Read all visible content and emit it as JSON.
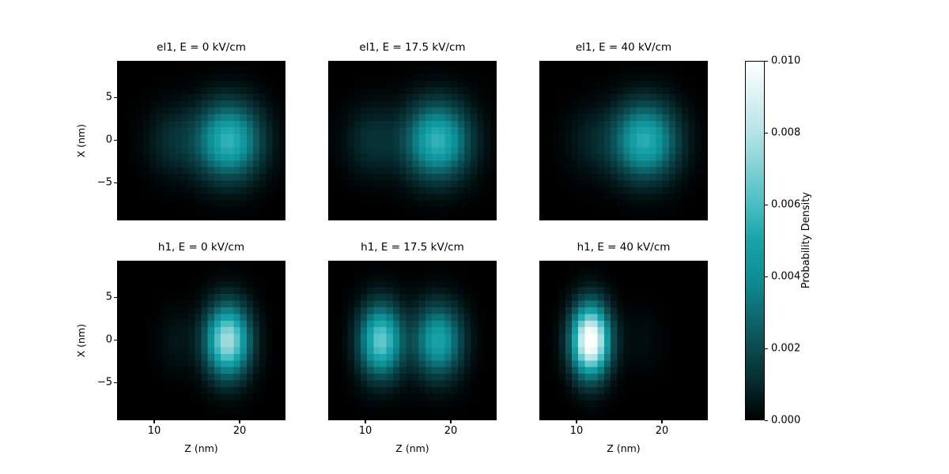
{
  "figure": {
    "background": "#ffffff",
    "text_color": "#000000",
    "colormap_stops": [
      [
        0.0,
        "#000000"
      ],
      [
        0.1,
        "#062a2e"
      ],
      [
        0.2,
        "#0b4a4f"
      ],
      [
        0.3,
        "#0e6d74"
      ],
      [
        0.4,
        "#0f8f96"
      ],
      [
        0.5,
        "#17a3aa"
      ],
      [
        0.6,
        "#49bec3"
      ],
      [
        0.8,
        "#b5e3e5"
      ],
      [
        1.0,
        "#ffffff"
      ]
    ]
  },
  "chart_data": {
    "type": "heatmap",
    "layout": "2x3 grid of probability-density maps with shared colorbar on right",
    "xlabel": "Z (nm)",
    "ylabel": "X (nm)",
    "x_range": [
      5.6,
      25.4
    ],
    "y_range": [
      -9.4,
      9.4
    ],
    "x_ticks": [
      10,
      20
    ],
    "x_tick_labels": [
      "10",
      "20"
    ],
    "y_ticks": [
      5,
      0,
      -5
    ],
    "y_tick_labels": [
      "5",
      "0",
      "−5"
    ],
    "vmin": 0.0,
    "vmax": 0.01,
    "grid": {
      "nz": 26,
      "nx": 24
    },
    "panels": [
      {
        "id": "el1-e0",
        "title": "el1, E = 0 kV/cm",
        "row": 0,
        "col": 0,
        "blobs": [
          {
            "z": 18.7,
            "x": 0,
            "sigma_z": 2.55,
            "sigma_x": 3.0,
            "peak": 0.0056
          },
          {
            "z": 12.2,
            "x": 0,
            "sigma_z": 2.2,
            "sigma_x": 2.8,
            "peak": 0.0011
          }
        ]
      },
      {
        "id": "el1-e17_5",
        "title": "el1, E = 17.5 kV/cm",
        "row": 0,
        "col": 1,
        "blobs": [
          {
            "z": 18.4,
            "x": 0,
            "sigma_z": 2.55,
            "sigma_x": 3.0,
            "peak": 0.0056
          },
          {
            "z": 10.8,
            "x": 0,
            "sigma_z": 2.2,
            "sigma_x": 2.8,
            "peak": 0.0012
          }
        ]
      },
      {
        "id": "el1-e40",
        "title": "el1, E = 40 kV/cm",
        "row": 0,
        "col": 2,
        "blobs": [
          {
            "z": 18.0,
            "x": 0,
            "sigma_z": 2.55,
            "sigma_x": 3.0,
            "peak": 0.0054
          },
          {
            "z": 11.7,
            "x": 0,
            "sigma_z": 2.2,
            "sigma_x": 2.8,
            "peak": 0.0007
          }
        ]
      },
      {
        "id": "h1-e0",
        "title": "h1, E = 0 kV/cm",
        "row": 1,
        "col": 0,
        "blobs": [
          {
            "z": 18.6,
            "x": 0,
            "sigma_z": 1.75,
            "sigma_x": 2.85,
            "peak": 0.0078
          },
          {
            "z": 12.7,
            "x": 0,
            "sigma_z": 1.6,
            "sigma_x": 2.6,
            "peak": 0.0005
          }
        ]
      },
      {
        "id": "h1-e17_5",
        "title": "h1, E = 17.5 kV/cm",
        "row": 1,
        "col": 1,
        "blobs": [
          {
            "z": 11.8,
            "x": 0,
            "sigma_z": 1.7,
            "sigma_x": 2.85,
            "peak": 0.0066
          },
          {
            "z": 18.5,
            "x": 0,
            "sigma_z": 1.9,
            "sigma_x": 2.85,
            "peak": 0.005
          }
        ]
      },
      {
        "id": "h1-e40",
        "title": "h1, E = 40 kV/cm",
        "row": 1,
        "col": 2,
        "blobs": [
          {
            "z": 11.6,
            "x": 0,
            "sigma_z": 1.5,
            "sigma_x": 2.8,
            "peak": 0.0108
          },
          {
            "z": 17.5,
            "x": 0,
            "sigma_z": 1.8,
            "sigma_x": 2.6,
            "peak": 0.0003
          }
        ]
      }
    ],
    "colorbar": {
      "label": "Probability Density",
      "tick_values": [
        0.01,
        0.008,
        0.006,
        0.004,
        0.002,
        0.0
      ],
      "tick_labels": [
        "0.010",
        "0.008",
        "0.006",
        "0.004",
        "0.002",
        "0.000"
      ]
    }
  }
}
